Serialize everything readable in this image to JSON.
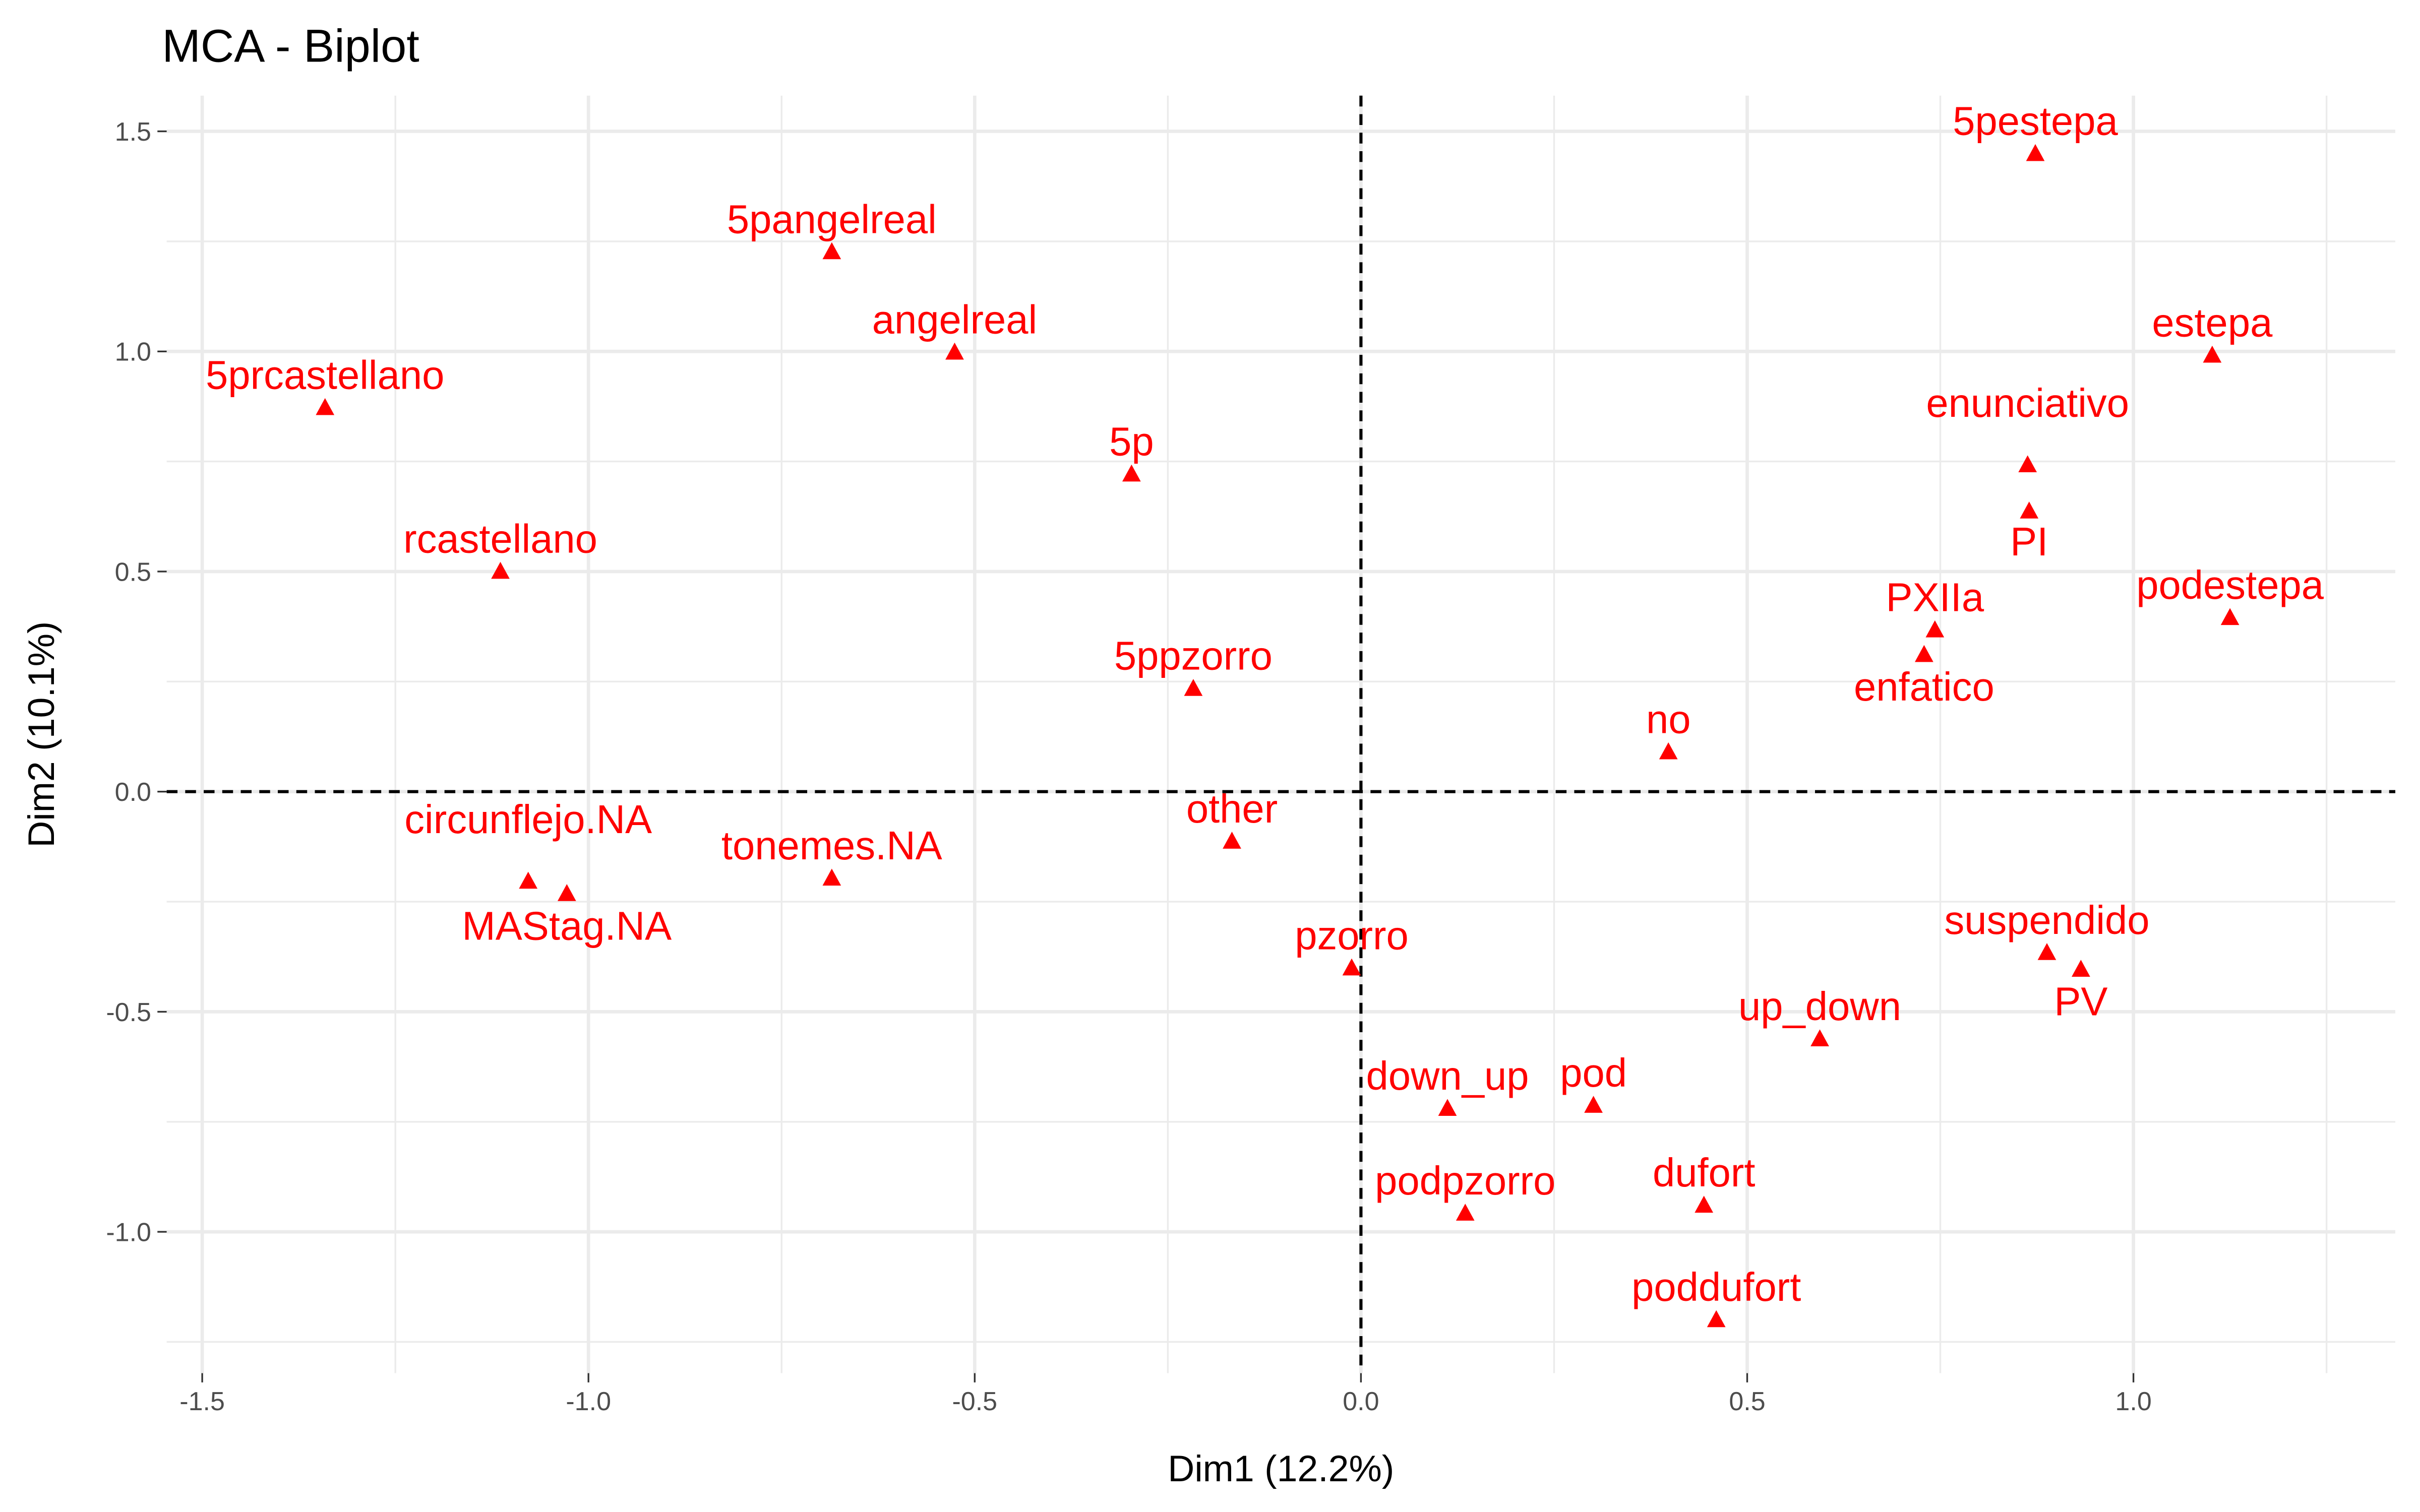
{
  "chart_data": {
    "type": "scatter",
    "title": "MCA - Biplot",
    "xlabel": "Dim1 (12.2%)",
    "ylabel": "Dim2 (10.1%)",
    "xlim": [
      -1.546,
      1.339
    ],
    "ylim": [
      -1.321,
      1.581
    ],
    "xticks": [
      -1.5,
      -1.0,
      -0.5,
      0.0,
      0.5,
      1.0
    ],
    "xtick_labels": [
      "-1.5",
      "-1.0",
      "-0.5",
      "0.0",
      "0.5",
      "1.0"
    ],
    "yticks": [
      -1.0,
      -0.5,
      0.0,
      0.5,
      1.0,
      1.5
    ],
    "ytick_labels": [
      "-1.0",
      "-0.5",
      "0.0",
      "0.5",
      "1.0",
      "1.5"
    ],
    "minor_ticks": [
      -1.25,
      -0.75,
      -0.25,
      0.25,
      0.75,
      1.25
    ],
    "grid": true,
    "reference_lines": {
      "x": 0,
      "y": 0,
      "style": "dashed"
    },
    "marker": "triangle",
    "color": "#ff0000",
    "points": [
      {
        "label": "5pestepa",
        "x": 0.873,
        "y": 1.45
      },
      {
        "label": "5pangelreal",
        "x": -0.685,
        "y": 1.227
      },
      {
        "label": "angelreal",
        "x": -0.526,
        "y": 0.999
      },
      {
        "label": "estepa",
        "x": 1.102,
        "y": 0.992
      },
      {
        "label": "5prcastellano",
        "x": -1.341,
        "y": 0.873
      },
      {
        "label": "5p",
        "x": -0.297,
        "y": 0.722
      },
      {
        "label": "enunciativo",
        "x": 0.863,
        "y": 0.743
      },
      {
        "label": "PI",
        "x": 0.865,
        "y": 0.638
      },
      {
        "label": "rcastellano",
        "x": -1.114,
        "y": 0.501
      },
      {
        "label": "podestepa",
        "x": 1.125,
        "y": 0.396
      },
      {
        "label": "PXIIa",
        "x": 0.743,
        "y": 0.368
      },
      {
        "label": "enfatico",
        "x": 0.729,
        "y": 0.312
      },
      {
        "label": "5ppzorro",
        "x": -0.217,
        "y": 0.235
      },
      {
        "label": "no",
        "x": 0.398,
        "y": 0.091
      },
      {
        "label": "other",
        "x": -0.167,
        "y": -0.112
      },
      {
        "label": "circunflejo.NA",
        "x": -1.078,
        "y": -0.203
      },
      {
        "label": "MAStag.NA",
        "x": -1.028,
        "y": -0.231
      },
      {
        "label": "tonemes.NA",
        "x": -0.685,
        "y": -0.196
      },
      {
        "label": "pzorro",
        "x": -0.012,
        "y": -0.4
      },
      {
        "label": "suspendido",
        "x": 0.888,
        "y": -0.365
      },
      {
        "label": "PV",
        "x": 0.932,
        "y": -0.403
      },
      {
        "label": "up_down",
        "x": 0.594,
        "y": -0.561
      },
      {
        "label": "down_up",
        "x": 0.112,
        "y": -0.719
      },
      {
        "label": "pod",
        "x": 0.301,
        "y": -0.712
      },
      {
        "label": "dufort",
        "x": 0.444,
        "y": -0.939
      },
      {
        "label": "podpzorro",
        "x": 0.135,
        "y": -0.957
      },
      {
        "label": "poddufort",
        "x": 0.46,
        "y": -1.199
      }
    ]
  }
}
